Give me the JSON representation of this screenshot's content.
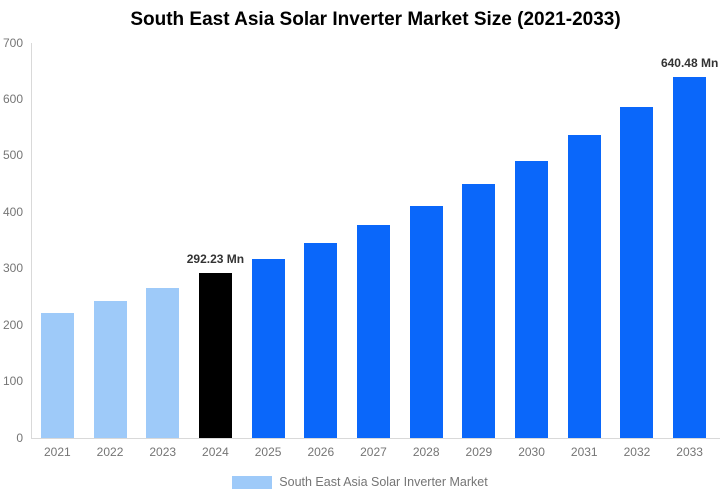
{
  "chart_data": {
    "type": "bar",
    "title": "South East Asia Solar Inverter Market Size (2021-2033)",
    "categories": [
      "2021",
      "2022",
      "2023",
      "2024",
      "2025",
      "2026",
      "2027",
      "2028",
      "2029",
      "2030",
      "2031",
      "2032",
      "2033"
    ],
    "series": [
      {
        "name": "South East Asia Solar Inverter Market",
        "values": [
          222,
          243,
          266,
          292.23,
          317,
          346,
          378,
          412,
          450,
          491,
          537,
          586,
          640.48
        ]
      }
    ],
    "unit": "Mn",
    "xlabel": "",
    "ylabel": "",
    "ylim": [
      0,
      700
    ],
    "yticks": [
      0,
      100,
      200,
      300,
      400,
      500,
      600,
      700
    ],
    "grid": false,
    "legend_position": "bottom",
    "bar_roles": [
      "historical",
      "historical",
      "historical",
      "current",
      "forecast",
      "forecast",
      "forecast",
      "forecast",
      "forecast",
      "forecast",
      "forecast",
      "forecast",
      "forecast"
    ],
    "annotations": [
      {
        "category": "2024",
        "text": "292.23 Mn"
      },
      {
        "category": "2033",
        "text": "640.48 Mn"
      }
    ],
    "legend": [
      {
        "label": "South East Asia Solar Inverter Market",
        "swatch_color": "#9ECAF9"
      }
    ]
  },
  "colors": {
    "historical_bar": "#9ECAF9",
    "current_bar": "#000000",
    "forecast_bar": "#0A67FA",
    "axis_line": "#d9d9d9",
    "tick_label": "#757575",
    "annotation_text": "#333333",
    "title_text": "#000000",
    "legend_text": "#757575",
    "background": "#ffffff"
  }
}
